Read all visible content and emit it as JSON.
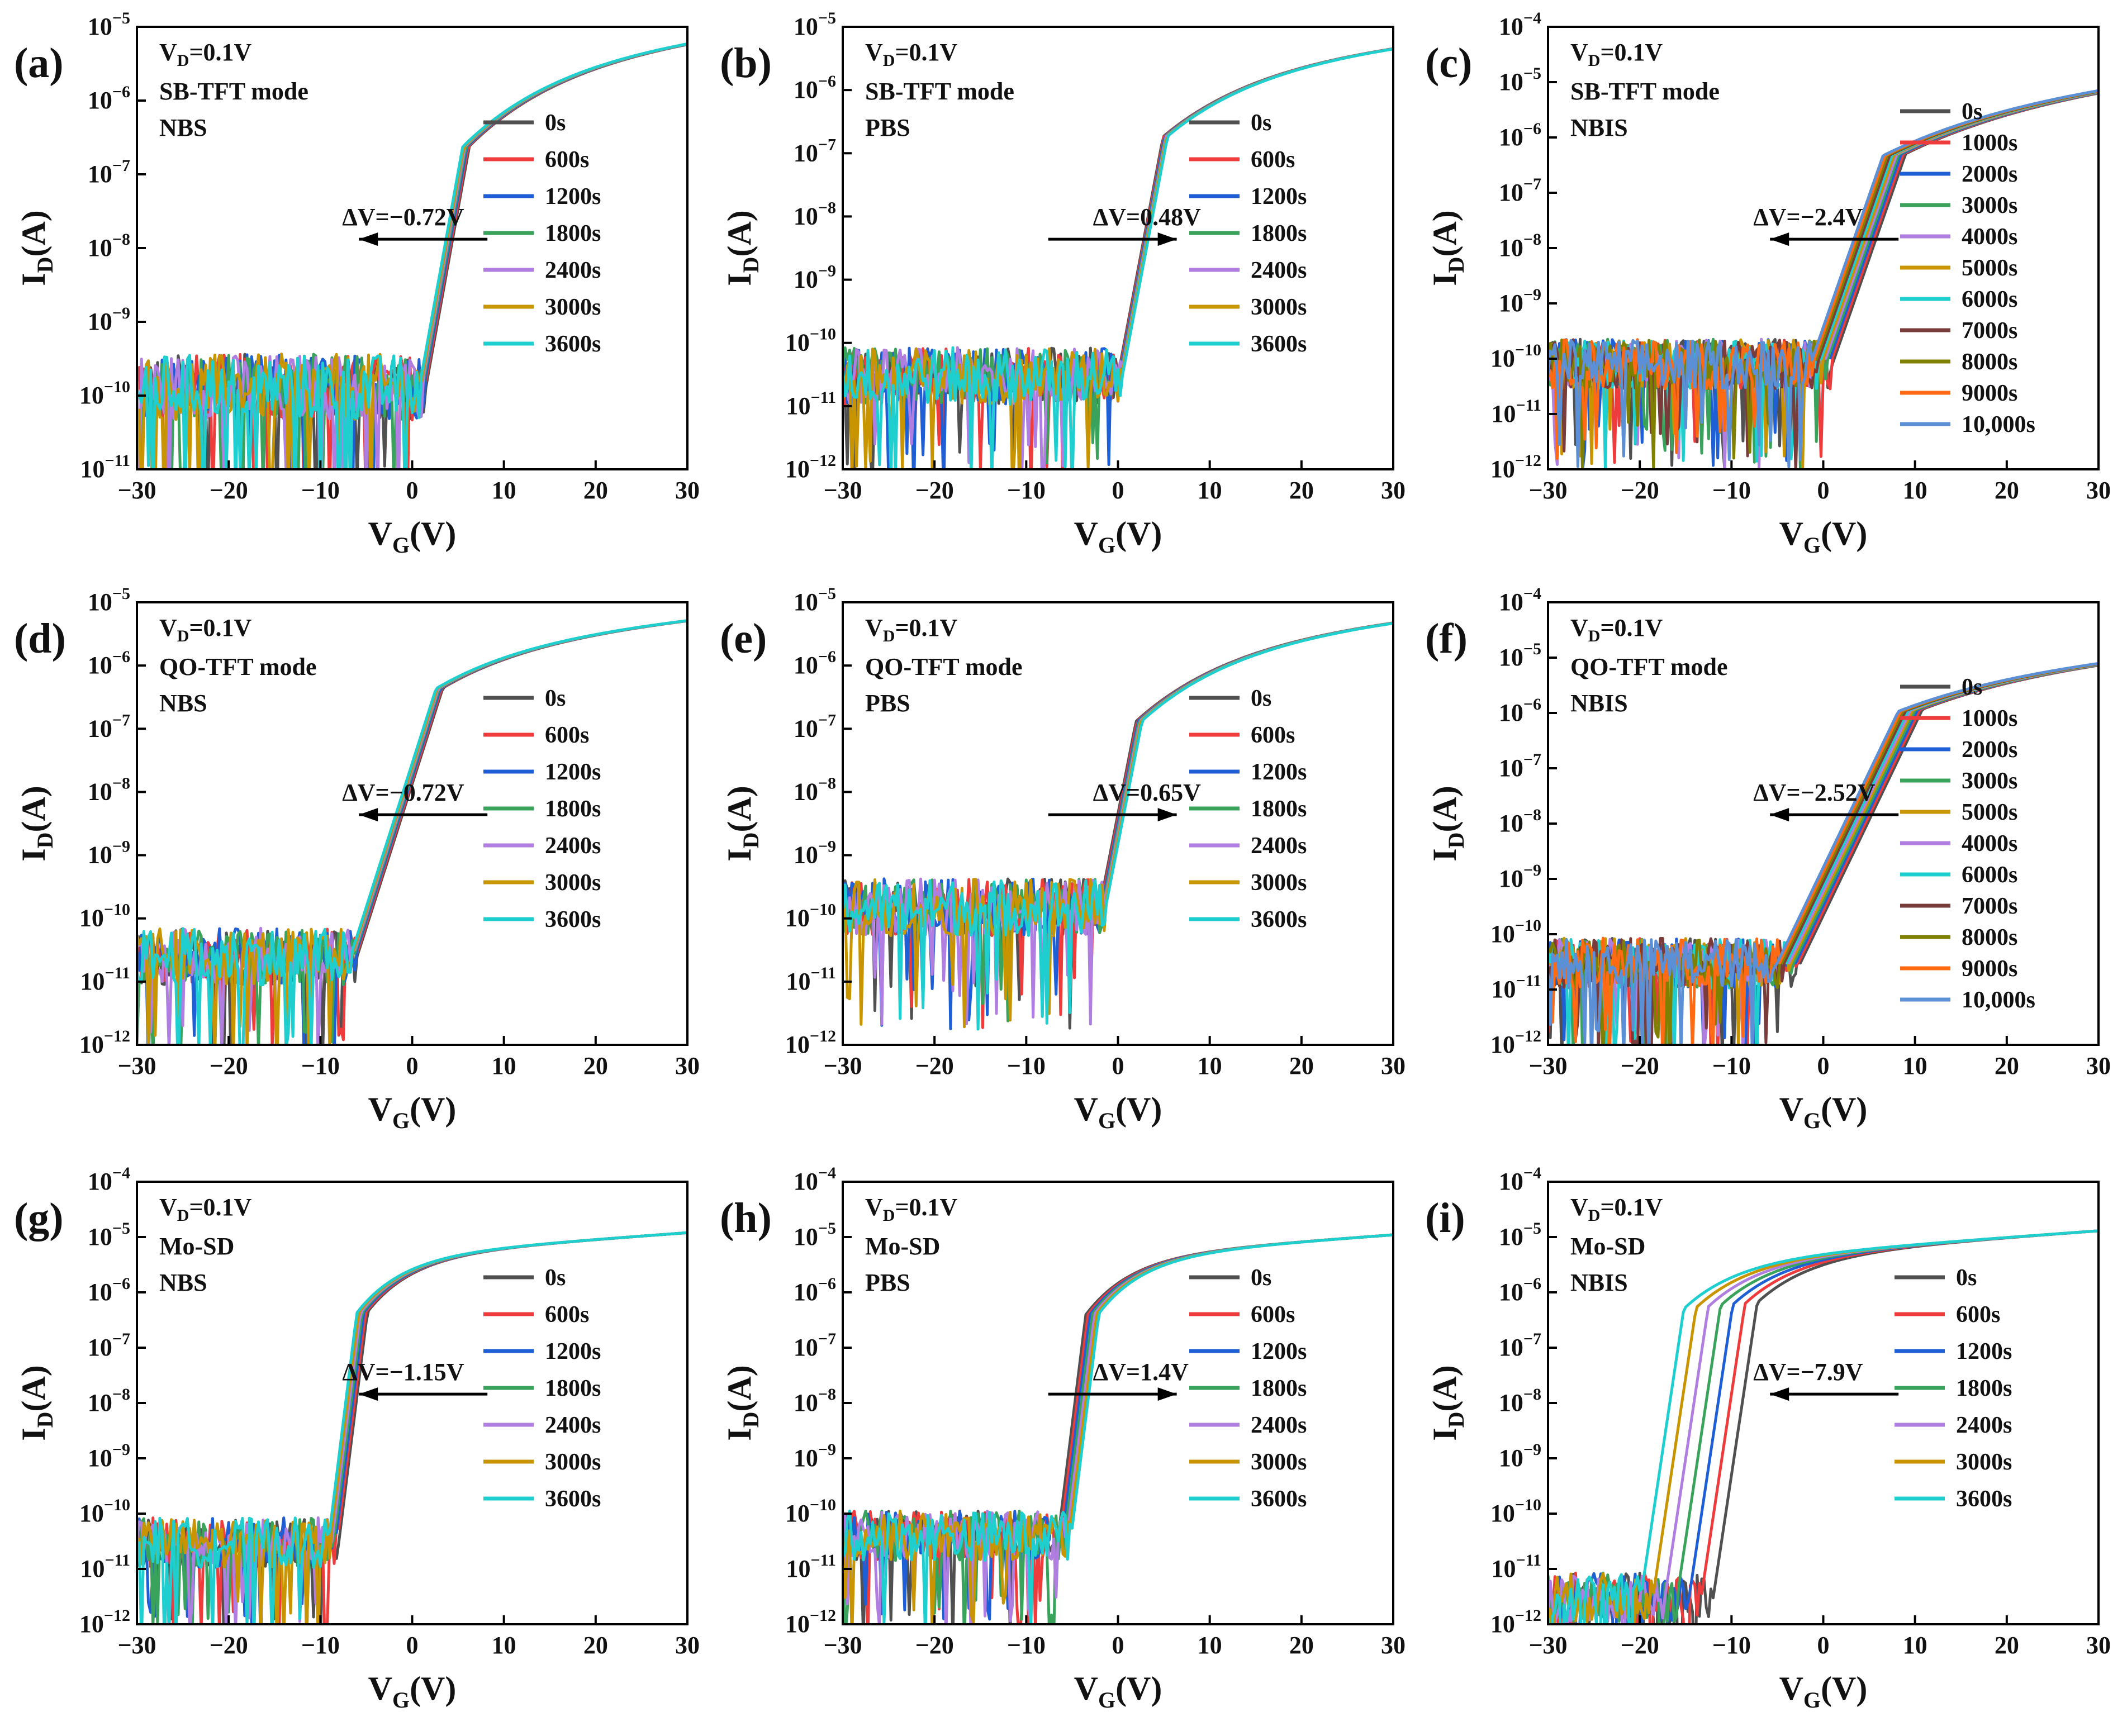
{
  "figure": {
    "xlabel_main": "V",
    "xlabel_sub": "G",
    "xlabel_unit": "(V)",
    "ylabel_main": "I",
    "ylabel_sub": "D",
    "ylabel_unit": "(A)",
    "xticks": [
      "−30",
      "−20",
      "−10",
      "0",
      "10",
      "20",
      "30"
    ]
  },
  "chart_data": [
    {
      "type": "line",
      "panel": "(a)",
      "info_vd_prefix": "V",
      "info_vd_sub": "D",
      "info_vd_value": "=0.1V",
      "info_line2": "SB-TFT mode",
      "info_line3": "NBS",
      "xlim": [
        -30,
        30
      ],
      "ylim_exp": [
        -11,
        -5
      ],
      "y_scale": "log",
      "legend": [
        "0s",
        "600s",
        "1200s",
        "1800s",
        "2400s",
        "3000s",
        "3600s"
      ],
      "colors": [
        "#505050",
        "#ee3b3b",
        "#1f5fd6",
        "#3aa35b",
        "#b07ee0",
        "#c89500",
        "#1fcfcf"
      ],
      "annotation": "ΔV=−0.72V",
      "arrow": "left",
      "model": {
        "vth0": 1.5,
        "dv": -0.72,
        "ss": 1.45,
        "off": 1.3e-10,
        "ion": 8e-06,
        "vsat": 8
      }
    },
    {
      "type": "line",
      "panel": "(b)",
      "info_vd_prefix": "V",
      "info_vd_sub": "D",
      "info_vd_value": "=0.1V",
      "info_line2": "SB-TFT mode",
      "info_line3": "PBS",
      "xlim": [
        -30,
        30
      ],
      "ylim_exp": [
        -12,
        -5
      ],
      "y_scale": "log",
      "legend": [
        "0s",
        "600s",
        "1200s",
        "1800s",
        "2400s",
        "3000s",
        "3600s"
      ],
      "colors": [
        "#505050",
        "#ee3b3b",
        "#1f5fd6",
        "#3aa35b",
        "#b07ee0",
        "#c89500",
        "#1fcfcf"
      ],
      "annotation": "ΔV=0.48V",
      "arrow": "right",
      "model": {
        "vth0": 0.0,
        "dv": 0.48,
        "ss": 1.3,
        "off": 3e-11,
        "ion": 6e-06,
        "vsat": 8
      }
    },
    {
      "type": "line",
      "panel": "(c)",
      "info_vd_prefix": "V",
      "info_vd_sub": "D",
      "info_vd_value": "=0.1V",
      "info_line2": "SB-TFT mode",
      "info_line3": "NBIS",
      "xlim": [
        -30,
        30
      ],
      "ylim_exp": [
        -12,
        -4
      ],
      "y_scale": "log",
      "legend": [
        "0s",
        "1000s",
        "2000s",
        "3000s",
        "4000s",
        "5000s",
        "6000s",
        "7000s",
        "8000s",
        "9000s",
        "10,000s"
      ],
      "colors": [
        "#505050",
        "#ee3b3b",
        "#1f5fd6",
        "#3aa35b",
        "#b07ee0",
        "#c89500",
        "#1fcfcf",
        "#7a3b3b",
        "#808000",
        "#ff6a13",
        "#5b8fd6"
      ],
      "annotation": "ΔV=−2.4V",
      "arrow": "left",
      "model": {
        "vth0": 1.0,
        "dv": -2.4,
        "ss": 2.1,
        "off": 8e-11,
        "ion": 1.4e-05,
        "vsat": 14
      }
    },
    {
      "type": "line",
      "panel": "(d)",
      "info_vd_prefix": "V",
      "info_vd_sub": "D",
      "info_vd_value": "=0.1V",
      "info_line2": "QO-TFT mode",
      "info_line3": "NBS",
      "xlim": [
        -30,
        30
      ],
      "ylim_exp": [
        -12,
        -5
      ],
      "y_scale": "log",
      "legend": [
        "0s",
        "600s",
        "1200s",
        "1800s",
        "2400s",
        "3000s",
        "3600s"
      ],
      "colors": [
        "#505050",
        "#ee3b3b",
        "#1f5fd6",
        "#3aa35b",
        "#b07ee0",
        "#c89500",
        "#1fcfcf"
      ],
      "annotation": "ΔV=−0.72V",
      "arrow": "left",
      "model": {
        "vth0": -6.0,
        "dv": -0.72,
        "ss": 2.2,
        "off": 2.5e-11,
        "ion": 6e-06,
        "vsat": 8
      }
    },
    {
      "type": "line",
      "panel": "(e)",
      "info_vd_prefix": "V",
      "info_vd_sub": "D",
      "info_vd_value": "=0.1V",
      "info_line2": "QO-TFT mode",
      "info_line3": "PBS",
      "xlim": [
        -30,
        30
      ],
      "ylim_exp": [
        -12,
        -5
      ],
      "y_scale": "log",
      "legend": [
        "0s",
        "600s",
        "1200s",
        "1800s",
        "2400s",
        "3000s",
        "3600s"
      ],
      "colors": [
        "#505050",
        "#ee3b3b",
        "#1f5fd6",
        "#3aa35b",
        "#b07ee0",
        "#c89500",
        "#1fcfcf"
      ],
      "annotation": "ΔV=0.65V",
      "arrow": "right",
      "model": {
        "vth0": -2.0,
        "dv": 0.65,
        "ss": 1.35,
        "off": 1.5e-10,
        "ion": 6e-06,
        "vsat": 8
      }
    },
    {
      "type": "line",
      "panel": "(f)",
      "info_vd_prefix": "V",
      "info_vd_sub": "D",
      "info_vd_value": "=0.1V",
      "info_line2": "QO-TFT mode",
      "info_line3": "NBIS",
      "xlim": [
        -30,
        30
      ],
      "ylim_exp": [
        -12,
        -4
      ],
      "y_scale": "log",
      "legend": [
        "0s",
        "1000s",
        "2000s",
        "3000s",
        "5000s",
        "4000s",
        "6000s",
        "7000s",
        "8000s",
        "9000s",
        "10,000s"
      ],
      "colors": [
        "#505050",
        "#ee3b3b",
        "#1f5fd6",
        "#3aa35b",
        "#c89500",
        "#b07ee0",
        "#1fcfcf",
        "#7a3b3b",
        "#808000",
        "#ff6a13",
        "#5b8fd6"
      ],
      "annotation": "ΔV=−2.52V",
      "arrow": "left",
      "model": {
        "vth0": -2.5,
        "dv": -2.52,
        "ss": 2.9,
        "off": 3e-11,
        "ion": 1.2e-05,
        "vsat": 12
      }
    },
    {
      "type": "line",
      "panel": "(g)",
      "info_vd_prefix": "V",
      "info_vd_sub": "D",
      "info_vd_value": "=0.1V",
      "info_line2": "Mo-SD",
      "info_line3": "NBS",
      "xlim": [
        -30,
        30
      ],
      "ylim_exp": [
        -12,
        -4
      ],
      "y_scale": "log",
      "legend": [
        "0s",
        "600s",
        "1200s",
        "1800s",
        "2400s",
        "3000s",
        "3600s"
      ],
      "colors": [
        "#505050",
        "#ee3b3b",
        "#1f5fd6",
        "#3aa35b",
        "#b07ee0",
        "#c89500",
        "#1fcfcf"
      ],
      "annotation": "ΔV=−1.15V",
      "arrow": "left",
      "model": {
        "vth0": -8.0,
        "dv": -1.15,
        "ss": 0.75,
        "off": 3e-11,
        "ion": 1.2e-05,
        "vsat": 2
      }
    },
    {
      "type": "line",
      "panel": "(h)",
      "info_vd_prefix": "V",
      "info_vd_sub": "D",
      "info_vd_value": "=0.1V",
      "info_line2": "Mo-SD",
      "info_line3": "PBS",
      "xlim": [
        -30,
        30
      ],
      "ylim_exp": [
        -12,
        -4
      ],
      "y_scale": "log",
      "legend": [
        "0s",
        "600s",
        "1200s",
        "1800s",
        "2400s",
        "3000s",
        "3600s"
      ],
      "colors": [
        "#505050",
        "#ee3b3b",
        "#1f5fd6",
        "#3aa35b",
        "#b07ee0",
        "#c89500",
        "#1fcfcf"
      ],
      "annotation": "ΔV=1.4V",
      "arrow": "right",
      "model": {
        "vth0": -6.5,
        "dv": 1.4,
        "ss": 0.75,
        "off": 4e-11,
        "ion": 1.1e-05,
        "vsat": 2
      }
    },
    {
      "type": "line",
      "panel": "(i)",
      "info_vd_prefix": "V",
      "info_vd_sub": "D",
      "info_vd_value": "=0.1V",
      "info_line2": "Mo-SD",
      "info_line3": "NBIS",
      "xlim": [
        -30,
        30
      ],
      "ylim_exp": [
        -12,
        -4
      ],
      "y_scale": "log",
      "legend": [
        "0s",
        "600s",
        "1200s",
        "1800s",
        "2400s",
        "3000s",
        "3600s"
      ],
      "colors": [
        "#505050",
        "#ee3b3b",
        "#1f5fd6",
        "#3aa35b",
        "#b07ee0",
        "#c89500",
        "#1fcfcf"
      ],
      "annotation": "ΔV=−7.9V",
      "arrow": "left",
      "model": {
        "vth0": -12.0,
        "dv": -7.9,
        "ss": 0.9,
        "off": 3e-12,
        "ion": 1.3e-05,
        "vsat": 3
      }
    }
  ]
}
